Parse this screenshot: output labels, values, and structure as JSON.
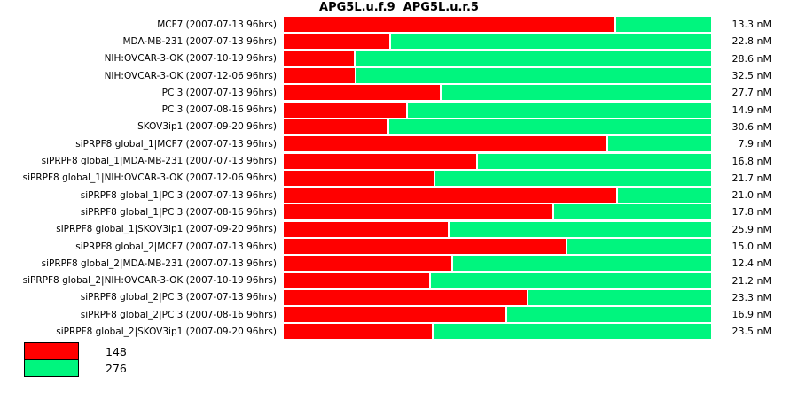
{
  "title": "APG5L.u.f.9  APG5L.u.r.5",
  "colors": {
    "red": "#ff0000",
    "green": "#00f57e",
    "background": "#ffffff",
    "text": "#000000"
  },
  "chart_data": {
    "type": "bar",
    "orientation": "horizontal",
    "stacked": true,
    "title": "APG5L.u.f.9  APG5L.u.r.5",
    "legend_position": "bottom-left",
    "legend": [
      {
        "label": "148",
        "color": "#ff0000"
      },
      {
        "label": "276",
        "color": "#00f57e"
      }
    ],
    "categories": [
      "MCF7 (2007-07-13 96hrs)",
      "MDA-MB-231 (2007-07-13 96hrs)",
      "NIH:OVCAR-3-OK (2007-10-19 96hrs)",
      "NIH:OVCAR-3-OK (2007-12-06 96hrs)",
      "PC 3 (2007-07-13 96hrs)",
      "PC 3 (2007-08-16 96hrs)",
      "SKOV3ip1 (2007-09-20 96hrs)",
      "siPRPF8 global_1|MCF7 (2007-07-13 96hrs)",
      "siPRPF8 global_1|MDA-MB-231 (2007-07-13 96hrs)",
      "siPRPF8 global_1|NIH:OVCAR-3-OK (2007-12-06 96hrs)",
      "siPRPF8 global_1|PC 3 (2007-07-13 96hrs)",
      "siPRPF8 global_1|PC 3 (2007-08-16 96hrs)",
      "siPRPF8 global_1|SKOV3ip1 (2007-09-20 96hrs)",
      "siPRPF8 global_2|MCF7 (2007-07-13 96hrs)",
      "siPRPF8 global_2|MDA-MB-231 (2007-07-13 96hrs)",
      "siPRPF8 global_2|NIH:OVCAR-3-OK (2007-10-19 96hrs)",
      "siPRPF8 global_2|PC 3 (2007-07-13 96hrs)",
      "siPRPF8 global_2|PC 3 (2007-08-16 96hrs)",
      "siPRPF8 global_2|SKOV3ip1 (2007-09-20 96hrs)"
    ],
    "series": [
      {
        "name": "148",
        "color": "#ff0000",
        "fractions": [
          0.775,
          0.248,
          0.167,
          0.169,
          0.368,
          0.289,
          0.244,
          0.758,
          0.452,
          0.353,
          0.781,
          0.63,
          0.385,
          0.661,
          0.394,
          0.343,
          0.57,
          0.52,
          0.349
        ]
      },
      {
        "name": "276",
        "color": "#00f57e",
        "fractions": [
          0.225,
          0.752,
          0.833,
          0.831,
          0.632,
          0.711,
          0.756,
          0.242,
          0.548,
          0.647,
          0.219,
          0.37,
          0.615,
          0.339,
          0.606,
          0.657,
          0.43,
          0.48,
          0.651
        ]
      }
    ],
    "right_labels": [
      "13.3 nM",
      "22.8 nM",
      "28.6 nM",
      "32.5 nM",
      "27.7 nM",
      "14.9 nM",
      "30.6 nM",
      "7.9 nM",
      "16.8 nM",
      "21.7 nM",
      "21.0 nM",
      "17.8 nM",
      "25.9 nM",
      "15.0 nM",
      "12.4 nM",
      "21.2 nM",
      "23.3 nM",
      "16.9 nM",
      "23.5 nM"
    ]
  }
}
